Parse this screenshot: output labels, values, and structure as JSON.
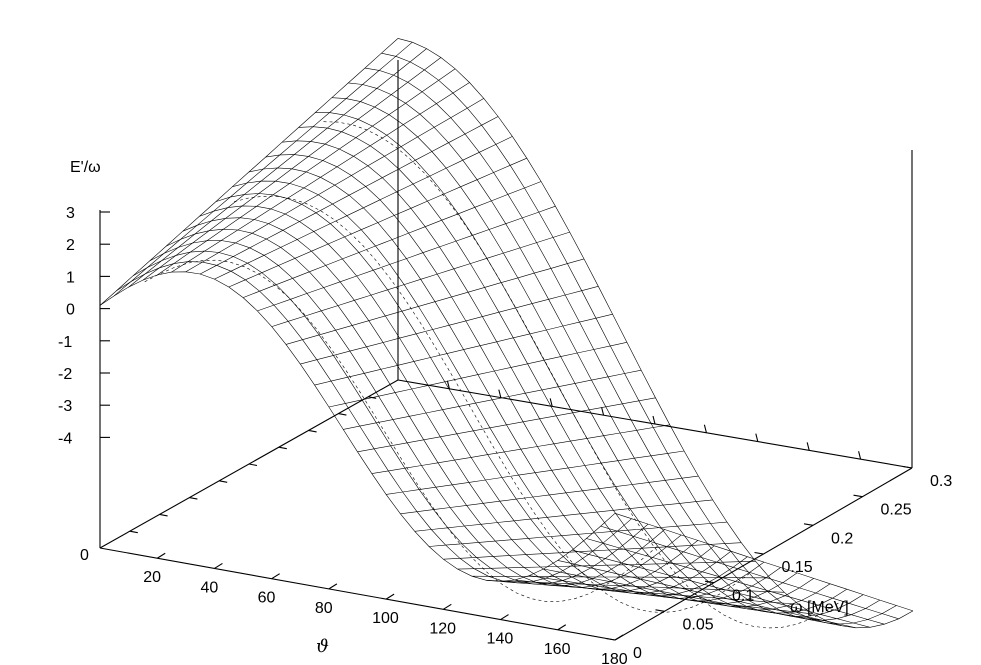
{
  "chart_data": {
    "type": "surface",
    "z_axis_label": "E'/ω",
    "z_ticks": [
      "3",
      "2",
      "1",
      "0",
      "-1",
      "-2",
      "-3",
      "-4"
    ],
    "z_base_label": "0",
    "x_axis_label": "ϑ",
    "x_ticks": [
      "20",
      "40",
      "60",
      "80",
      "100",
      "120",
      "140",
      "160",
      "180"
    ],
    "y_axis_label": "ω [MeV]",
    "y_ticks": [
      "0",
      "0.05",
      "0.1",
      "0.15",
      "0.2",
      "0.25",
      "0.3"
    ],
    "x_range": [
      0,
      180
    ],
    "y_range": [
      0,
      0.3
    ],
    "z_range": [
      -4,
      3
    ],
    "grid": false,
    "surface_description_values": {
      "theta_samples": [
        0,
        30,
        60,
        90,
        120,
        150,
        180
      ],
      "omega_samples": [
        0,
        0.1,
        0.2,
        0.3
      ]
    }
  }
}
